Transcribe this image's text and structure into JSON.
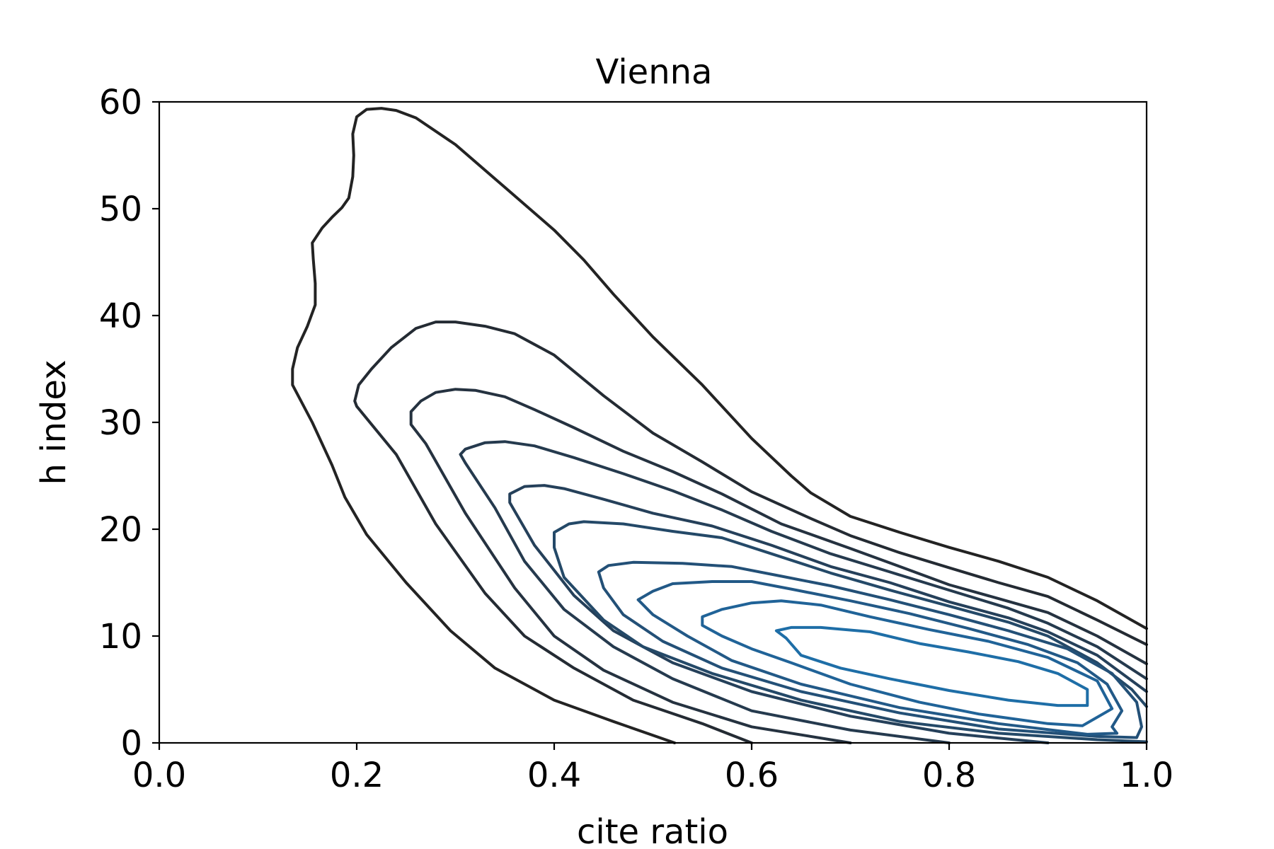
{
  "chart_data": {
    "type": "contour",
    "title": "Vienna",
    "xlabel": "cite ratio",
    "ylabel": "h index",
    "xlim": [
      0.0,
      1.0
    ],
    "ylim": [
      0,
      60
    ],
    "x_ticks": [
      {
        "value": 0.0,
        "label": "0.0"
      },
      {
        "value": 0.2,
        "label": "0.2"
      },
      {
        "value": 0.4,
        "label": "0.4"
      },
      {
        "value": 0.6,
        "label": "0.6"
      },
      {
        "value": 0.8,
        "label": "0.8"
      },
      {
        "value": 1.0,
        "label": "1.0"
      }
    ],
    "y_ticks": [
      {
        "value": 0,
        "label": "0"
      },
      {
        "value": 10,
        "label": "10"
      },
      {
        "value": 20,
        "label": "20"
      },
      {
        "value": 30,
        "label": "30"
      },
      {
        "value": 40,
        "label": "40"
      },
      {
        "value": 50,
        "label": "50"
      },
      {
        "value": 60,
        "label": "60"
      }
    ],
    "grid": false,
    "legend": false,
    "contours": [
      {
        "level": 1,
        "color": "#232323",
        "points": [
          [
            0.522,
            0
          ],
          [
            0.46,
            2
          ],
          [
            0.4,
            4
          ],
          [
            0.34,
            7
          ],
          [
            0.295,
            10.5
          ],
          [
            0.25,
            15
          ],
          [
            0.21,
            19.5
          ],
          [
            0.188,
            23
          ],
          [
            0.175,
            26
          ],
          [
            0.155,
            30
          ],
          [
            0.135,
            33.5
          ],
          [
            0.135,
            35
          ],
          [
            0.14,
            37
          ],
          [
            0.15,
            39
          ],
          [
            0.158,
            41
          ],
          [
            0.158,
            43
          ],
          [
            0.156,
            45.3
          ],
          [
            0.155,
            46.8
          ],
          [
            0.165,
            48.2
          ],
          [
            0.175,
            49.2
          ],
          [
            0.185,
            50.1
          ],
          [
            0.192,
            51
          ],
          [
            0.196,
            53
          ],
          [
            0.197,
            55
          ],
          [
            0.196,
            57
          ],
          [
            0.2,
            58.6
          ],
          [
            0.21,
            59.3
          ],
          [
            0.225,
            59.4
          ],
          [
            0.24,
            59.2
          ],
          [
            0.26,
            58.5
          ],
          [
            0.3,
            56
          ],
          [
            0.35,
            52
          ],
          [
            0.4,
            48
          ],
          [
            0.43,
            45.2
          ],
          [
            0.46,
            42
          ],
          [
            0.5,
            38
          ],
          [
            0.55,
            33.5
          ],
          [
            0.6,
            28.5
          ],
          [
            0.64,
            25
          ],
          [
            0.66,
            23.4
          ],
          [
            0.7,
            21.2
          ],
          [
            0.75,
            19.7
          ],
          [
            0.8,
            18.3
          ],
          [
            0.85,
            17
          ],
          [
            0.9,
            15.5
          ],
          [
            0.95,
            13.3
          ],
          [
            1.0,
            10.7
          ]
        ]
      },
      {
        "level": 2,
        "color": "#242b33",
        "points": [
          [
            0.6,
            0
          ],
          [
            0.55,
            1.8
          ],
          [
            0.48,
            4
          ],
          [
            0.42,
            7
          ],
          [
            0.37,
            10
          ],
          [
            0.33,
            14
          ],
          [
            0.28,
            20.5
          ],
          [
            0.24,
            27
          ],
          [
            0.2,
            31.5
          ],
          [
            0.198,
            32
          ],
          [
            0.202,
            33.5
          ],
          [
            0.215,
            35
          ],
          [
            0.235,
            37
          ],
          [
            0.26,
            38.8
          ],
          [
            0.28,
            39.4
          ],
          [
            0.3,
            39.4
          ],
          [
            0.33,
            39
          ],
          [
            0.36,
            38.3
          ],
          [
            0.4,
            36.3
          ],
          [
            0.45,
            32.5
          ],
          [
            0.5,
            29
          ],
          [
            0.55,
            26.3
          ],
          [
            0.6,
            23.5
          ],
          [
            0.66,
            21
          ],
          [
            0.7,
            19.4
          ],
          [
            0.75,
            17.8
          ],
          [
            0.8,
            16.4
          ],
          [
            0.85,
            15
          ],
          [
            0.9,
            13.7
          ],
          [
            0.95,
            11.5
          ],
          [
            1.0,
            9.2
          ]
        ]
      },
      {
        "level": 3,
        "color": "#253240",
        "points": [
          [
            0.7,
            0
          ],
          [
            0.6,
            1.5
          ],
          [
            0.52,
            3.8
          ],
          [
            0.45,
            6.8
          ],
          [
            0.4,
            10
          ],
          [
            0.36,
            14.5
          ],
          [
            0.31,
            21.5
          ],
          [
            0.27,
            28
          ],
          [
            0.255,
            29.8
          ],
          [
            0.255,
            31
          ],
          [
            0.265,
            32
          ],
          [
            0.28,
            32.8
          ],
          [
            0.3,
            33.1
          ],
          [
            0.32,
            33
          ],
          [
            0.35,
            32.4
          ],
          [
            0.38,
            31.2
          ],
          [
            0.42,
            29.5
          ],
          [
            0.47,
            27.3
          ],
          [
            0.52,
            25.4
          ],
          [
            0.57,
            23.3
          ],
          [
            0.63,
            20.5
          ],
          [
            0.7,
            18.2
          ],
          [
            0.75,
            16.5
          ],
          [
            0.8,
            14.8
          ],
          [
            0.85,
            13.5
          ],
          [
            0.9,
            12.2
          ],
          [
            0.95,
            10
          ],
          [
            1.0,
            7.4
          ]
        ]
      },
      {
        "level": 4,
        "color": "#253a4e",
        "points": [
          [
            0.8,
            0
          ],
          [
            0.7,
            1.2
          ],
          [
            0.6,
            3
          ],
          [
            0.52,
            6
          ],
          [
            0.46,
            9
          ],
          [
            0.41,
            12.5
          ],
          [
            0.37,
            17
          ],
          [
            0.34,
            22
          ],
          [
            0.31,
            26.2
          ],
          [
            0.305,
            27
          ],
          [
            0.31,
            27.5
          ],
          [
            0.33,
            28.1
          ],
          [
            0.35,
            28.2
          ],
          [
            0.38,
            27.8
          ],
          [
            0.42,
            26.7
          ],
          [
            0.47,
            25.2
          ],
          [
            0.52,
            23.6
          ],
          [
            0.57,
            21.8
          ],
          [
            0.62,
            19.8
          ],
          [
            0.68,
            17.7
          ],
          [
            0.74,
            16
          ],
          [
            0.8,
            14.3
          ],
          [
            0.86,
            12.6
          ],
          [
            0.9,
            11.2
          ],
          [
            0.95,
            9
          ],
          [
            1.0,
            6
          ]
        ]
      },
      {
        "level": 5,
        "color": "#25405a",
        "points": [
          [
            0.9,
            0
          ],
          [
            0.8,
            0.9
          ],
          [
            0.7,
            2.5
          ],
          [
            0.6,
            4.8
          ],
          [
            0.52,
            7.5
          ],
          [
            0.46,
            10.5
          ],
          [
            0.42,
            13.8
          ],
          [
            0.38,
            18.5
          ],
          [
            0.355,
            22.5
          ],
          [
            0.355,
            23.3
          ],
          [
            0.37,
            24
          ],
          [
            0.39,
            24.1
          ],
          [
            0.41,
            23.8
          ],
          [
            0.45,
            22.8
          ],
          [
            0.5,
            21.5
          ],
          [
            0.56,
            20.3
          ],
          [
            0.62,
            18.5
          ],
          [
            0.68,
            16.5
          ],
          [
            0.74,
            15
          ],
          [
            0.8,
            13.2
          ],
          [
            0.86,
            11.7
          ],
          [
            0.9,
            10.4
          ],
          [
            0.95,
            8.2
          ],
          [
            1.0,
            4.8
          ]
        ]
      },
      {
        "level": 6,
        "color": "#244968",
        "points": [
          [
            1.0,
            0.1
          ],
          [
            0.95,
            0.3
          ],
          [
            0.85,
            0.9
          ],
          [
            0.75,
            2
          ],
          [
            0.65,
            4
          ],
          [
            0.56,
            6.5
          ],
          [
            0.49,
            9
          ],
          [
            0.45,
            11.5
          ],
          [
            0.41,
            15.5
          ],
          [
            0.4,
            18.3
          ],
          [
            0.4,
            19.7
          ],
          [
            0.415,
            20.5
          ],
          [
            0.43,
            20.7
          ],
          [
            0.47,
            20.5
          ],
          [
            0.52,
            19.8
          ],
          [
            0.57,
            19.2
          ],
          [
            0.62,
            17.7
          ],
          [
            0.68,
            15.9
          ],
          [
            0.74,
            14.3
          ],
          [
            0.8,
            12.8
          ],
          [
            0.86,
            11.3
          ],
          [
            0.9,
            10
          ],
          [
            0.95,
            7.5
          ],
          [
            0.985,
            5
          ],
          [
            1.0,
            3.4
          ]
        ]
      },
      {
        "level": 7,
        "color": "#235077",
        "points": [
          [
            0.99,
            0.5
          ],
          [
            0.95,
            0.6
          ],
          [
            0.85,
            1.3
          ],
          [
            0.75,
            2.8
          ],
          [
            0.65,
            4.8
          ],
          [
            0.57,
            7
          ],
          [
            0.51,
            9.5
          ],
          [
            0.47,
            12
          ],
          [
            0.45,
            14.5
          ],
          [
            0.445,
            16
          ],
          [
            0.455,
            16.6
          ],
          [
            0.48,
            16.9
          ],
          [
            0.53,
            16.8
          ],
          [
            0.58,
            16.5
          ],
          [
            0.63,
            15.6
          ],
          [
            0.68,
            14.7
          ],
          [
            0.74,
            13.4
          ],
          [
            0.8,
            12
          ],
          [
            0.86,
            10.5
          ],
          [
            0.92,
            8.8
          ],
          [
            0.965,
            6.5
          ],
          [
            0.99,
            3.8
          ],
          [
            0.995,
            1.5
          ],
          [
            0.99,
            0.5
          ]
        ]
      },
      {
        "level": 8,
        "color": "#225987",
        "points": [
          [
            0.97,
            0.9
          ],
          [
            0.94,
            0.8
          ],
          [
            0.85,
            1.8
          ],
          [
            0.75,
            3.3
          ],
          [
            0.65,
            5.5
          ],
          [
            0.58,
            7.7
          ],
          [
            0.535,
            10
          ],
          [
            0.5,
            12
          ],
          [
            0.485,
            13.4
          ],
          [
            0.5,
            14.2
          ],
          [
            0.52,
            14.9
          ],
          [
            0.56,
            15.1
          ],
          [
            0.6,
            15.1
          ],
          [
            0.64,
            14.4
          ],
          [
            0.7,
            13.3
          ],
          [
            0.76,
            12.1
          ],
          [
            0.82,
            10.7
          ],
          [
            0.88,
            9.2
          ],
          [
            0.93,
            7.5
          ],
          [
            0.96,
            5.5
          ],
          [
            0.975,
            3
          ],
          [
            0.965,
            1.5
          ],
          [
            0.97,
            0.9
          ]
        ]
      },
      {
        "level": 9,
        "color": "#206398",
        "points": [
          [
            0.935,
            1.6
          ],
          [
            0.9,
            1.8
          ],
          [
            0.83,
            2.7
          ],
          [
            0.77,
            3.8
          ],
          [
            0.7,
            5.5
          ],
          [
            0.64,
            7.5
          ],
          [
            0.6,
            8.8
          ],
          [
            0.57,
            10
          ],
          [
            0.55,
            11
          ],
          [
            0.55,
            11.8
          ],
          [
            0.57,
            12.5
          ],
          [
            0.6,
            13.1
          ],
          [
            0.63,
            13.3
          ],
          [
            0.67,
            12.9
          ],
          [
            0.72,
            11.8
          ],
          [
            0.78,
            10.6
          ],
          [
            0.84,
            9.5
          ],
          [
            0.9,
            8
          ],
          [
            0.95,
            5.8
          ],
          [
            0.965,
            3.2
          ],
          [
            0.935,
            1.6
          ]
        ]
      },
      {
        "level": 10,
        "color": "#1e6ea7",
        "points": [
          [
            0.94,
            3.5
          ],
          [
            0.91,
            3.5
          ],
          [
            0.86,
            4
          ],
          [
            0.8,
            4.9
          ],
          [
            0.74,
            6
          ],
          [
            0.69,
            7
          ],
          [
            0.65,
            8.2
          ],
          [
            0.635,
            9.8
          ],
          [
            0.625,
            10.5
          ],
          [
            0.64,
            10.8
          ],
          [
            0.67,
            10.8
          ],
          [
            0.72,
            10.4
          ],
          [
            0.77,
            9.3
          ],
          [
            0.82,
            8.5
          ],
          [
            0.87,
            7.6
          ],
          [
            0.91,
            6.5
          ],
          [
            0.94,
            5
          ],
          [
            0.94,
            3.5
          ]
        ]
      }
    ]
  }
}
